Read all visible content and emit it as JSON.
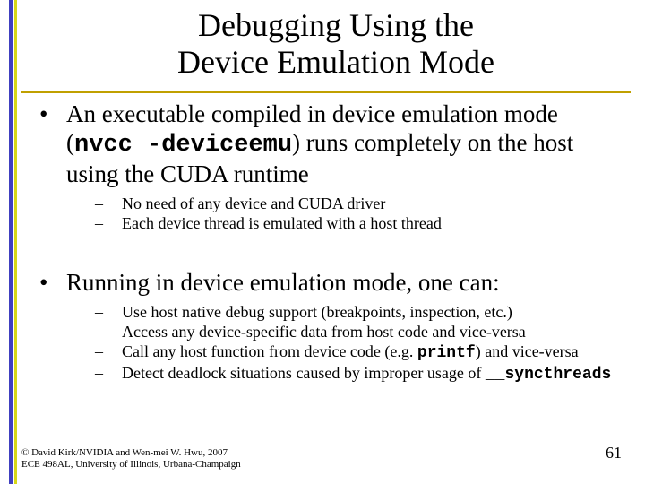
{
  "accent_color_1": "#4040c0",
  "accent_color_2": "#d8d817",
  "underline_color": "#c0a000",
  "title_line1": "Debugging Using the",
  "title_line2": "Device Emulation Mode",
  "bullets": [
    {
      "pre": "An executable compiled in device emulation mode (",
      "code": "nvcc -deviceemu",
      "post": ") runs completely on the host using the CUDA runtime",
      "subs": [
        "No need of any device and CUDA driver",
        "Each device thread is emulated with a host thread"
      ]
    },
    {
      "pre": "Running in device emulation mode, one can:",
      "code": "",
      "post": "",
      "subs": [
        "Use host native debug support (breakpoints, inspection, etc.)",
        "Access any device-specific data from host code and vice-versa"
      ]
    }
  ],
  "call_any": {
    "pre": "Call any host function from device code (e.g. ",
    "code": "printf",
    "post": ") and vice-versa"
  },
  "detect": {
    "pre": "Detect deadlock situations caused by improper usage of ",
    "code": "__syncthreads",
    "post": ""
  },
  "footer_line1": "© David Kirk/NVIDIA and Wen-mei W. Hwu, 2007",
  "footer_line2": "ECE 498AL, University of Illinois, Urbana-Champaign",
  "page_number": "61"
}
